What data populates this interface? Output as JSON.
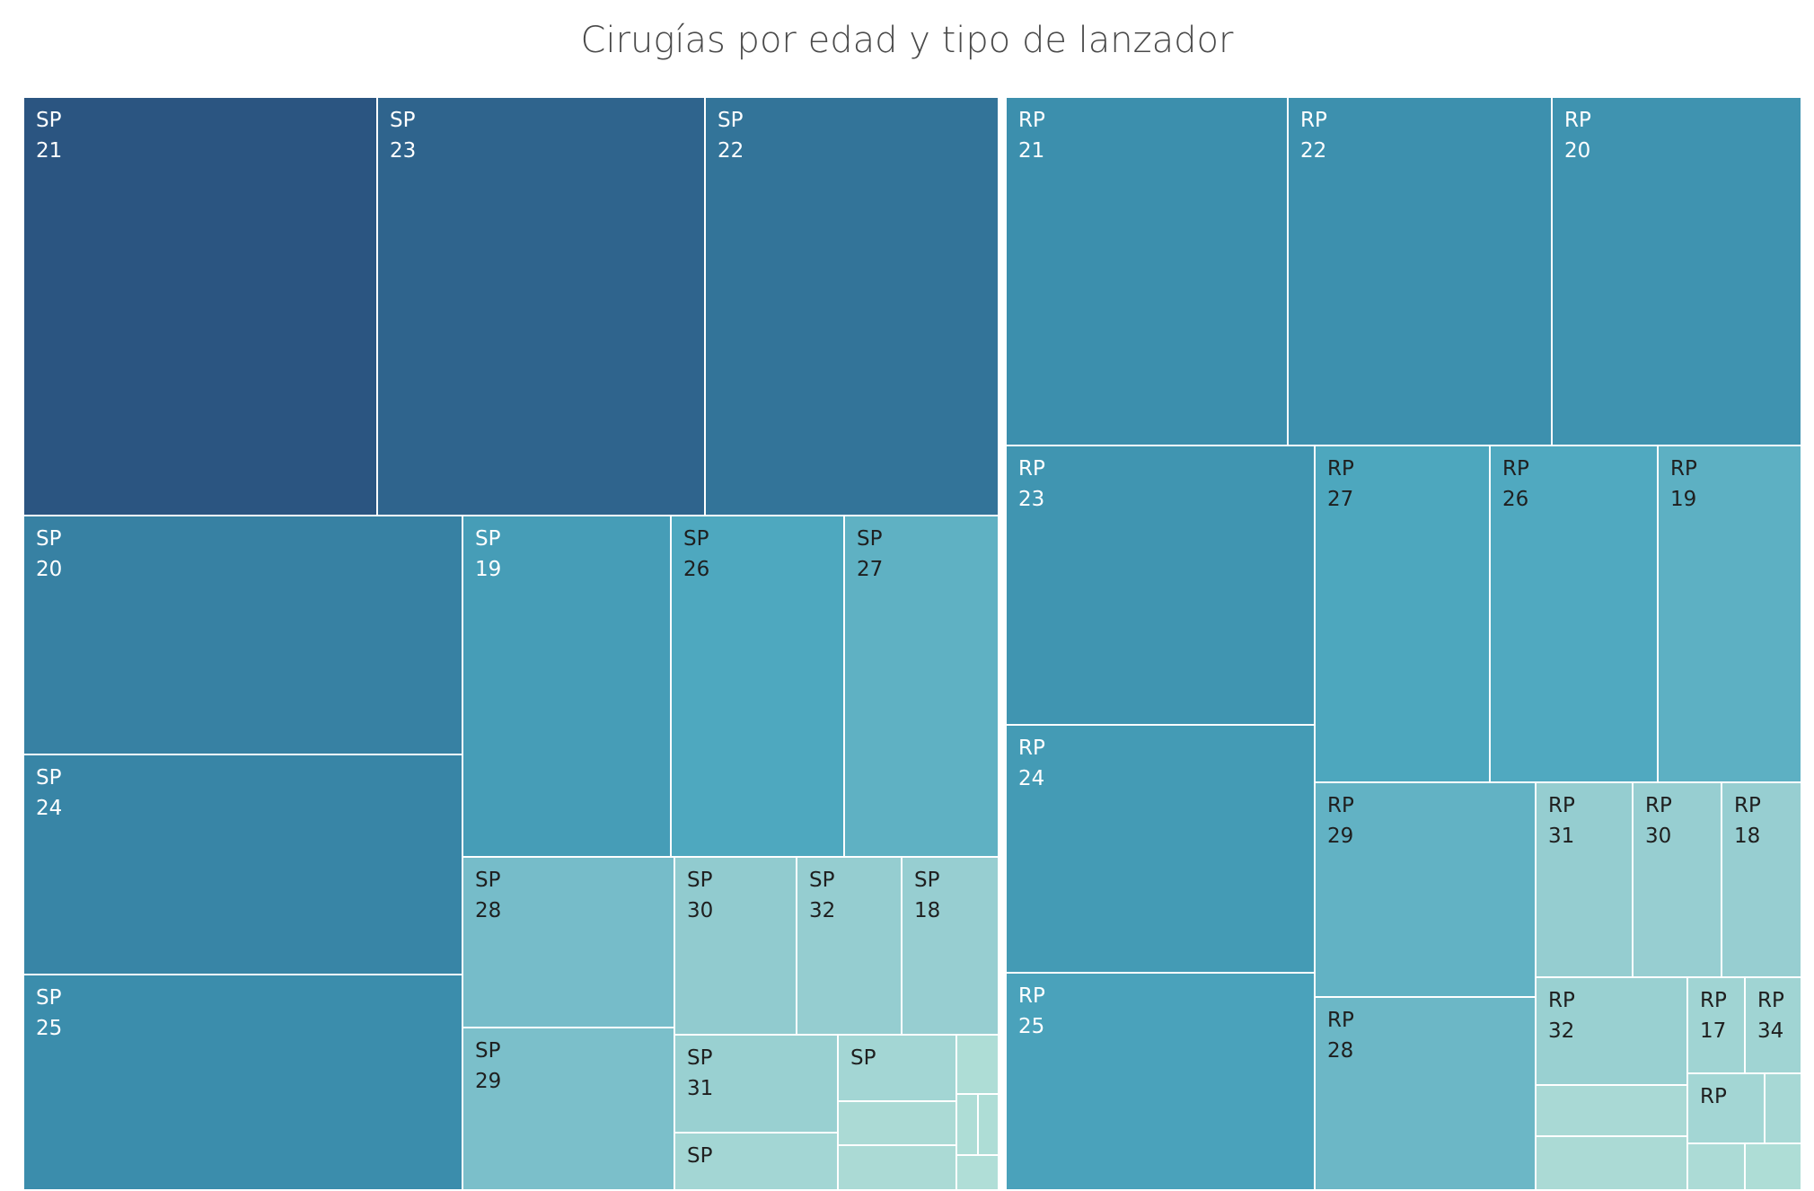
{
  "chart_data": {
    "type": "treemap",
    "title": "Cirugías por edad y tipo de lanzador",
    "groups": [
      {
        "name": "SP",
        "tiles": [
          {
            "label": "SP",
            "age": "21",
            "shade": 0.0
          },
          {
            "label": "SP",
            "age": "23",
            "shade": 0.07
          },
          {
            "label": "SP",
            "age": "22",
            "shade": 0.14
          },
          {
            "label": "SP",
            "age": "20",
            "shade": 0.2
          },
          {
            "label": "SP",
            "age": "24",
            "shade": 0.22
          },
          {
            "label": "SP",
            "age": "25",
            "shade": 0.26
          },
          {
            "label": "SP",
            "age": "19",
            "shade": 0.4
          },
          {
            "label": "SP",
            "age": "26",
            "shade": 0.5
          },
          {
            "label": "SP",
            "age": "27",
            "shade": 0.57
          },
          {
            "label": "SP",
            "age": "28",
            "shade": 0.66
          },
          {
            "label": "SP",
            "age": "29",
            "shade": 0.68
          },
          {
            "label": "SP",
            "age": "30",
            "shade": 0.78
          },
          {
            "label": "SP",
            "age": "32",
            "shade": 0.8
          },
          {
            "label": "SP",
            "age": "18",
            "shade": 0.81
          },
          {
            "label": "SP",
            "age": "31",
            "shade": 0.82
          },
          {
            "label": "SP",
            "age": "",
            "shade": 0.88
          },
          {
            "label": "SP",
            "age": "",
            "shade": 0.88
          },
          {
            "label": "",
            "age": "",
            "shade": 0.92
          },
          {
            "label": "",
            "age": "",
            "shade": 0.92
          },
          {
            "label": "",
            "age": "",
            "shade": 0.94
          },
          {
            "label": "",
            "age": "",
            "shade": 0.94
          },
          {
            "label": "",
            "age": "",
            "shade": 0.94
          },
          {
            "label": "",
            "age": "",
            "shade": 0.95
          }
        ]
      },
      {
        "name": "RP",
        "tiles": [
          {
            "label": "RP",
            "age": "21",
            "shade": 0.28
          },
          {
            "label": "RP",
            "age": "22",
            "shade": 0.29
          },
          {
            "label": "RP",
            "age": "20",
            "shade": 0.31
          },
          {
            "label": "RP",
            "age": "23",
            "shade": 0.33
          },
          {
            "label": "RP",
            "age": "24",
            "shade": 0.38
          },
          {
            "label": "RP",
            "age": "25",
            "shade": 0.45
          },
          {
            "label": "RP",
            "age": "27",
            "shade": 0.49
          },
          {
            "label": "RP",
            "age": "26",
            "shade": 0.51
          },
          {
            "label": "RP",
            "age": "19",
            "shade": 0.56
          },
          {
            "label": "RP",
            "age": "29",
            "shade": 0.58
          },
          {
            "label": "RP",
            "age": "28",
            "shade": 0.62
          },
          {
            "label": "RP",
            "age": "31",
            "shade": 0.8
          },
          {
            "label": "RP",
            "age": "30",
            "shade": 0.81
          },
          {
            "label": "RP",
            "age": "18",
            "shade": 0.81
          },
          {
            "label": "RP",
            "age": "32",
            "shade": 0.82
          },
          {
            "label": "RP",
            "age": "17",
            "shade": 0.86
          },
          {
            "label": "RP",
            "age": "34",
            "shade": 0.86
          },
          {
            "label": "RP",
            "age": "",
            "shade": 0.88
          },
          {
            "label": "",
            "age": "",
            "shade": 0.9
          },
          {
            "label": "",
            "age": "",
            "shade": 0.91
          },
          {
            "label": "",
            "age": "",
            "shade": 0.92
          },
          {
            "label": "",
            "age": "",
            "shade": 0.93
          },
          {
            "label": "",
            "age": "",
            "shade": 0.94
          }
        ]
      }
    ],
    "colors": {
      "scale": [
        "#2b5581",
        "#3a8cab",
        "#4ea8bf",
        "#8cc8ce",
        "#b9e3d9"
      ],
      "label_light": "#ffffff",
      "label_dark": "#1f1f1f",
      "title": "#4a4a4a",
      "border": "#ffffff"
    }
  }
}
